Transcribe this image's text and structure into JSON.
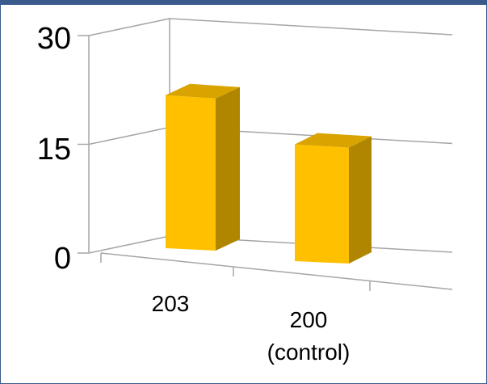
{
  "chart_data": {
    "type": "bar",
    "style": "3d-column",
    "categories": [
      "203",
      "200 (control)"
    ],
    "category_lines": [
      [
        "203"
      ],
      [
        "200",
        "(control)"
      ]
    ],
    "values": [
      22,
      17
    ],
    "ylim": [
      0,
      30
    ],
    "yticks": [
      "0",
      "15",
      "30"
    ],
    "title": "",
    "xlabel": "",
    "ylabel": "",
    "grid": true,
    "legend": "none",
    "colors": {
      "front": "#ffc000",
      "side": "#b08500",
      "top": "#d9a300",
      "grid": "#a6a6a6",
      "frame": "#3a5a8c"
    }
  }
}
